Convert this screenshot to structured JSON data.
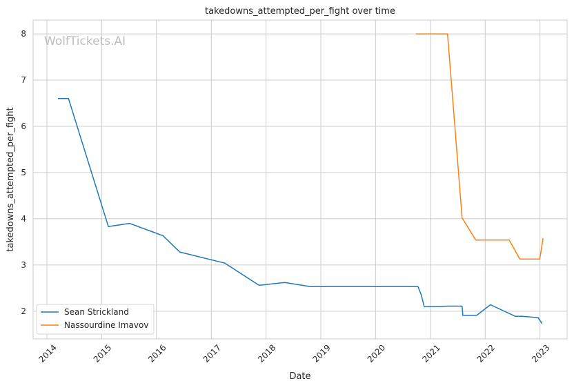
{
  "chart_data": {
    "type": "line",
    "title": "takedowns_attempted_per_fight over time",
    "xlabel": "Date",
    "ylabel": "takedowns_attempted_per_fight",
    "watermark": "WolfTickets.AI",
    "grid": true,
    "legend_position": "lower-left",
    "x_ticks": [
      "2014",
      "2015",
      "2016",
      "2017",
      "2018",
      "2019",
      "2020",
      "2021",
      "2022",
      "2023"
    ],
    "y_ticks": [
      "2",
      "3",
      "4",
      "5",
      "6",
      "7",
      "8"
    ],
    "xlim": [
      "2013-10-01",
      "2023-07-01"
    ],
    "ylim": [
      1.4,
      8.3
    ],
    "series": [
      {
        "name": "Sean Strickland",
        "color": "#1f77b4",
        "points": [
          [
            "2014-03-15",
            6.6
          ],
          [
            "2014-05-25",
            6.6
          ],
          [
            "2015-02-15",
            3.83
          ],
          [
            "2015-07-05",
            3.9
          ],
          [
            "2015-12-20",
            3.7
          ],
          [
            "2016-02-15",
            3.63
          ],
          [
            "2016-06-05",
            3.28
          ],
          [
            "2017-04-01",
            3.04
          ],
          [
            "2017-11-15",
            2.56
          ],
          [
            "2018-05-05",
            2.62
          ],
          [
            "2018-10-25",
            2.53
          ],
          [
            "2020-10-10",
            2.53
          ],
          [
            "2020-11-01",
            2.35
          ],
          [
            "2020-11-20",
            2.1
          ],
          [
            "2021-02-15",
            2.1
          ],
          [
            "2021-05-01",
            2.11
          ],
          [
            "2021-07-31",
            2.11
          ],
          [
            "2021-08-05",
            1.91
          ],
          [
            "2021-11-05",
            1.91
          ],
          [
            "2022-02-05",
            2.14
          ],
          [
            "2022-07-20",
            1.89
          ],
          [
            "2022-09-05",
            1.89
          ],
          [
            "2022-12-20",
            1.86
          ],
          [
            "2023-01-15",
            1.73
          ]
        ]
      },
      {
        "name": "Nassourdine Imavov",
        "color": "#ff7f0e",
        "points": [
          [
            "2020-09-26",
            8.0
          ],
          [
            "2021-04-25",
            8.0
          ],
          [
            "2021-07-31",
            4.02
          ],
          [
            "2021-10-30",
            3.54
          ],
          [
            "2022-06-10",
            3.54
          ],
          [
            "2022-08-20",
            3.13
          ],
          [
            "2022-12-31",
            3.13
          ],
          [
            "2023-01-22",
            3.58
          ]
        ]
      }
    ]
  }
}
